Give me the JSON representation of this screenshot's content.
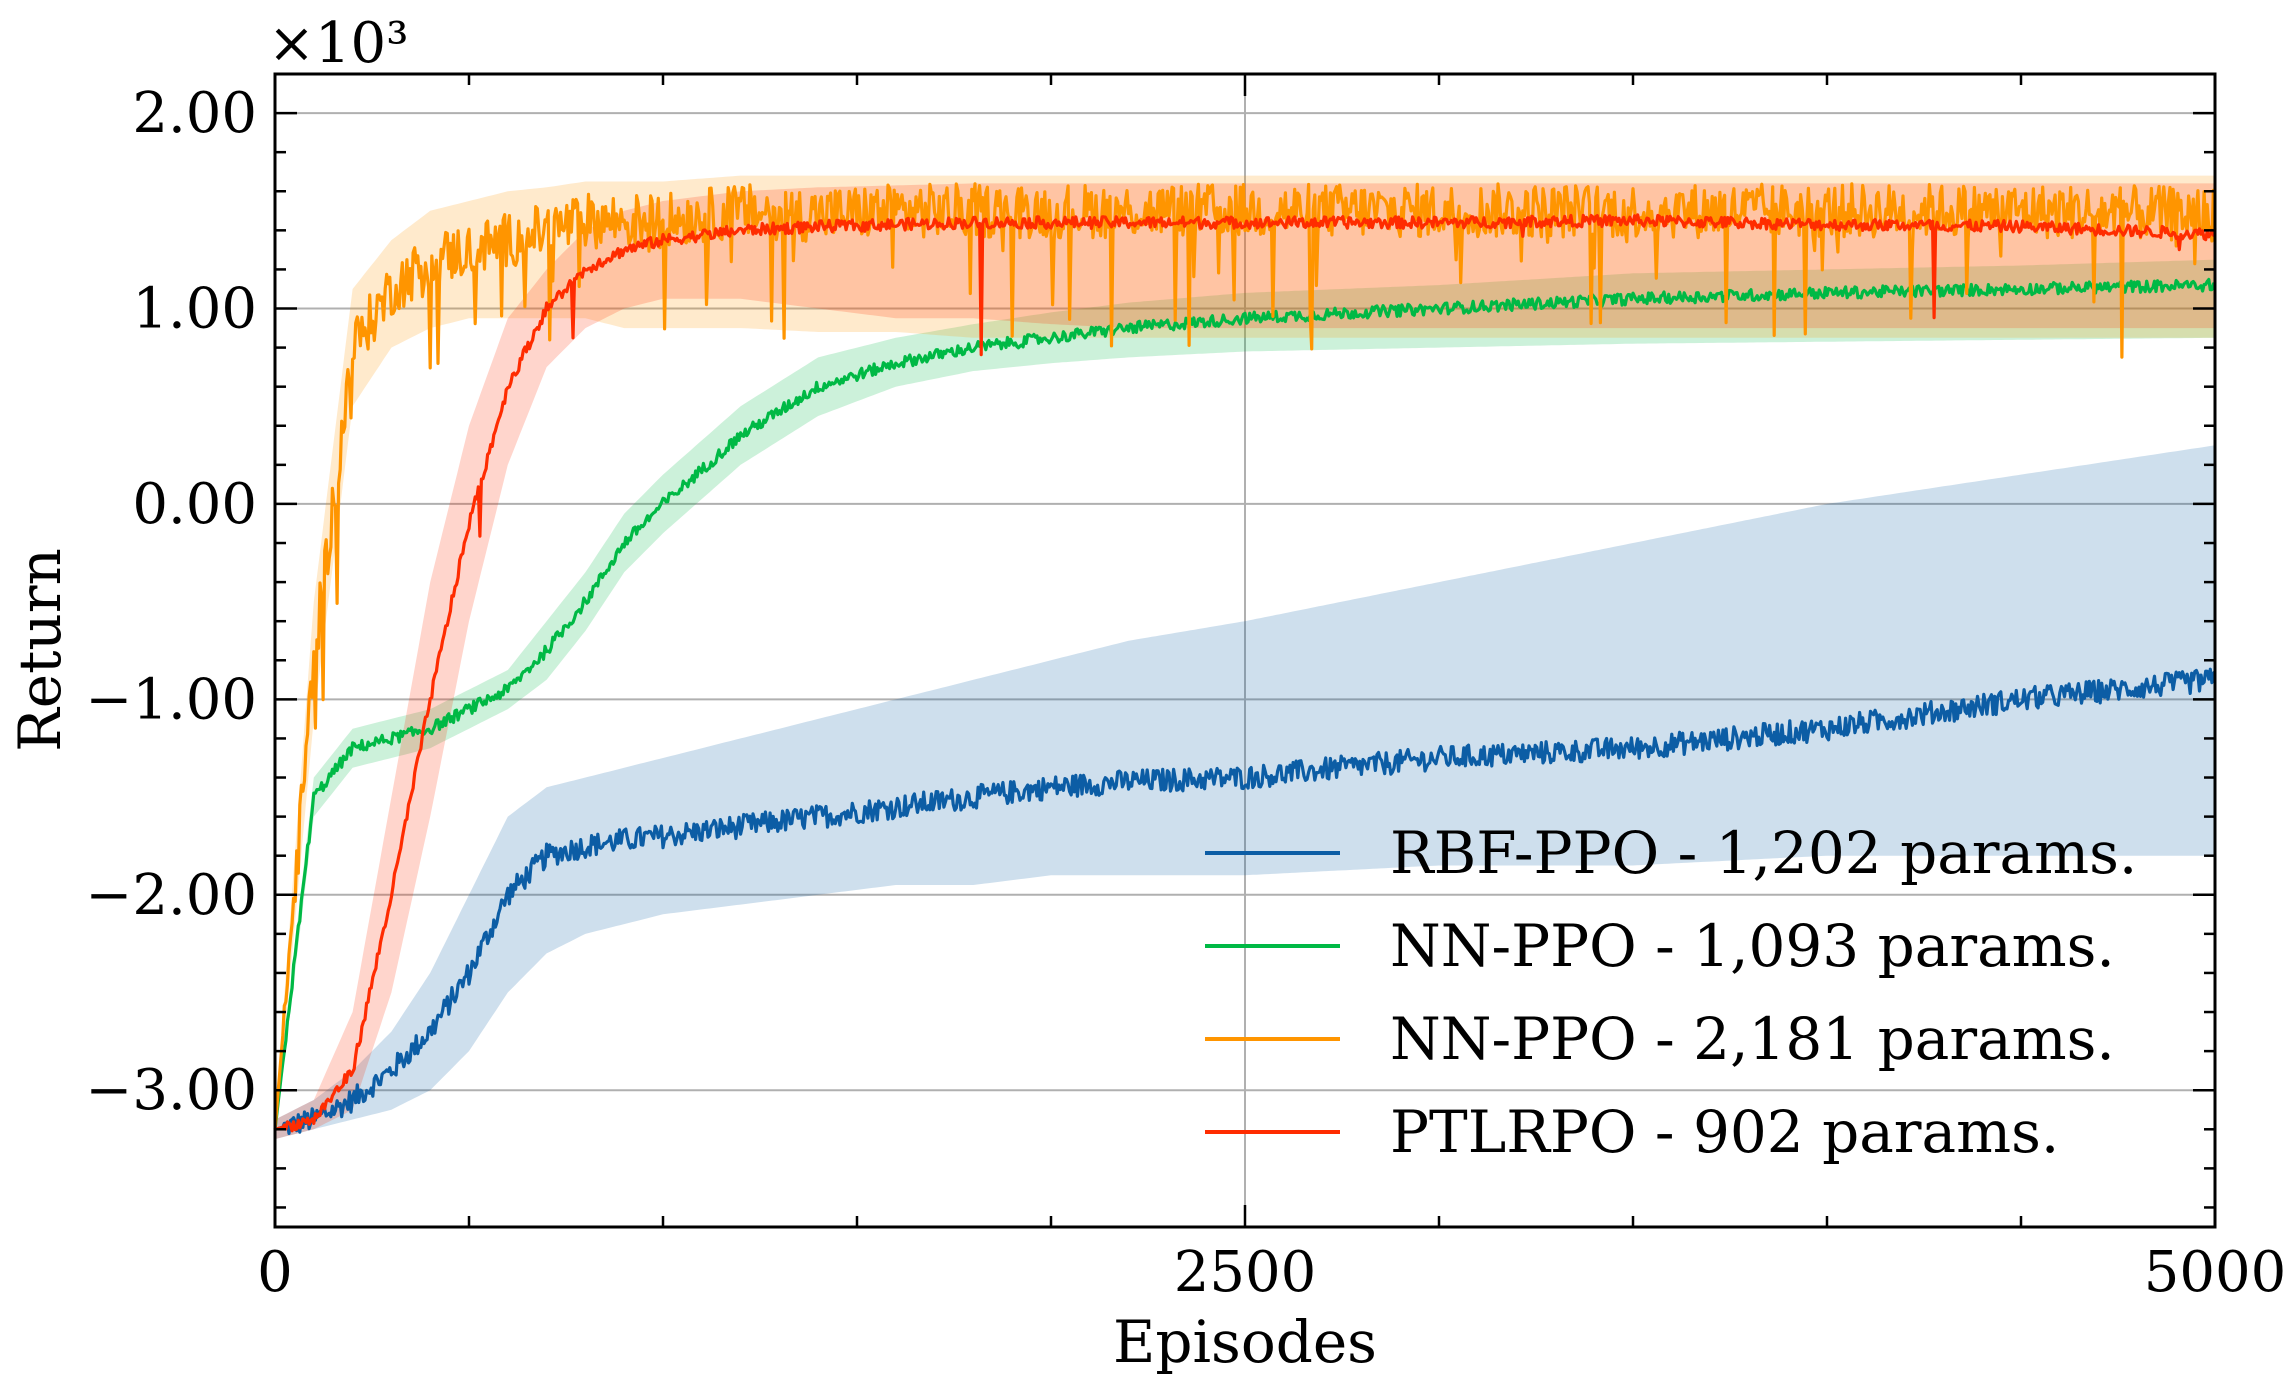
{
  "chart_data": {
    "type": "line",
    "title": "",
    "xlabel": "Episodes",
    "ylabel": "Return",
    "y_scale_label": "×10³",
    "xlim": [
      0,
      5000
    ],
    "ylim": [
      -3.7,
      2.2
    ],
    "x_ticks": [
      0,
      2500,
      5000
    ],
    "x_tick_labels": [
      "0",
      "2500",
      "5000"
    ],
    "y_ticks": [
      -3,
      -2,
      -1,
      0,
      1,
      2
    ],
    "y_tick_labels": [
      "−3.00",
      "−2.00",
      "−1.00",
      "0.00",
      "1.00",
      "2.00"
    ],
    "grid": true,
    "legend_position": "lower-right",
    "x": [
      0,
      100,
      200,
      300,
      400,
      500,
      600,
      700,
      800,
      900,
      1000,
      1200,
      1400,
      1600,
      1800,
      2000,
      2200,
      2500,
      3000,
      3500,
      4000,
      4500,
      5000
    ],
    "series": [
      {
        "name": "RBF-PPO - 1,202 params.",
        "color": "#0C5DA5",
        "values": [
          -3.2,
          -3.15,
          -3.05,
          -2.9,
          -2.7,
          -2.4,
          -2.0,
          -1.8,
          -1.75,
          -1.72,
          -1.7,
          -1.65,
          -1.6,
          -1.55,
          -1.5,
          -1.45,
          -1.42,
          -1.4,
          -1.3,
          -1.25,
          -1.15,
          -1.0,
          -0.9
        ],
        "band_lower": [
          -3.25,
          -3.2,
          -3.15,
          -3.1,
          -3.0,
          -2.8,
          -2.5,
          -2.3,
          -2.2,
          -2.15,
          -2.1,
          -2.05,
          -2.0,
          -1.95,
          -1.95,
          -1.9,
          -1.9,
          -1.9,
          -1.85,
          -1.85,
          -1.8,
          -1.8,
          -1.8
        ],
        "band_upper": [
          -3.15,
          -3.05,
          -2.9,
          -2.7,
          -2.4,
          -2.0,
          -1.6,
          -1.45,
          -1.4,
          -1.35,
          -1.3,
          -1.2,
          -1.1,
          -1.0,
          -0.9,
          -0.8,
          -0.7,
          -0.6,
          -0.4,
          -0.2,
          0.0,
          0.15,
          0.3
        ]
      },
      {
        "name": "NN-PPO - 1,093 params.",
        "color": "#00B945",
        "values": [
          -3.2,
          -1.5,
          -1.25,
          -1.2,
          -1.15,
          -1.05,
          -0.95,
          -0.75,
          -0.5,
          -0.2,
          0.0,
          0.35,
          0.6,
          0.72,
          0.8,
          0.85,
          0.9,
          0.95,
          1.0,
          1.05,
          1.08,
          1.1,
          1.12
        ],
        "band_lower": [
          -3.25,
          -1.6,
          -1.35,
          -1.3,
          -1.25,
          -1.15,
          -1.05,
          -0.9,
          -0.65,
          -0.35,
          -0.15,
          0.2,
          0.45,
          0.6,
          0.68,
          0.72,
          0.75,
          0.78,
          0.8,
          0.82,
          0.83,
          0.84,
          0.85
        ],
        "band_upper": [
          -3.15,
          -1.4,
          -1.15,
          -1.1,
          -1.05,
          -0.95,
          -0.85,
          -0.6,
          -0.35,
          -0.05,
          0.15,
          0.5,
          0.75,
          0.85,
          0.92,
          0.98,
          1.03,
          1.08,
          1.12,
          1.18,
          1.2,
          1.22,
          1.25
        ]
      },
      {
        "name": "NN-PPO - 2,181 params.",
        "color": "#FF9500",
        "values": [
          -3.2,
          -0.8,
          0.8,
          1.1,
          1.25,
          1.3,
          1.35,
          1.4,
          1.45,
          1.45,
          1.45,
          1.5,
          1.48,
          1.5,
          1.5,
          1.5,
          1.5,
          1.5,
          1.5,
          1.5,
          1.5,
          1.5,
          1.48
        ],
        "band_lower": [
          -3.25,
          -1.1,
          0.5,
          0.8,
          0.9,
          0.95,
          0.95,
          0.95,
          0.95,
          0.9,
          0.9,
          0.9,
          0.88,
          0.88,
          0.85,
          0.85,
          0.85,
          0.85,
          0.85,
          0.85,
          0.85,
          0.85,
          0.85
        ],
        "band_upper": [
          -3.15,
          -0.5,
          1.1,
          1.35,
          1.5,
          1.55,
          1.6,
          1.62,
          1.65,
          1.65,
          1.65,
          1.68,
          1.68,
          1.68,
          1.68,
          1.68,
          1.68,
          1.68,
          1.68,
          1.68,
          1.68,
          1.68,
          1.68
        ]
      },
      {
        "name": "PTLRPO - 902 params.",
        "color": "#FF2C00",
        "values": [
          -3.2,
          -3.15,
          -2.9,
          -2.0,
          -1.0,
          -0.1,
          0.6,
          1.0,
          1.2,
          1.3,
          1.35,
          1.4,
          1.42,
          1.43,
          1.44,
          1.44,
          1.44,
          1.44,
          1.44,
          1.45,
          1.43,
          1.42,
          1.38
        ],
        "band_lower": [
          -3.25,
          -3.2,
          -3.1,
          -2.5,
          -1.6,
          -0.6,
          0.2,
          0.7,
          0.9,
          1.0,
          1.05,
          1.05,
          1.0,
          0.95,
          0.95,
          0.92,
          0.9,
          0.9,
          0.9,
          0.9,
          0.9,
          0.9,
          0.9
        ],
        "band_upper": [
          -3.15,
          -3.05,
          -2.6,
          -1.5,
          -0.4,
          0.4,
          0.95,
          1.2,
          1.4,
          1.5,
          1.55,
          1.6,
          1.62,
          1.63,
          1.64,
          1.64,
          1.64,
          1.64,
          1.64,
          1.64,
          1.64,
          1.64,
          1.64
        ]
      }
    ]
  }
}
